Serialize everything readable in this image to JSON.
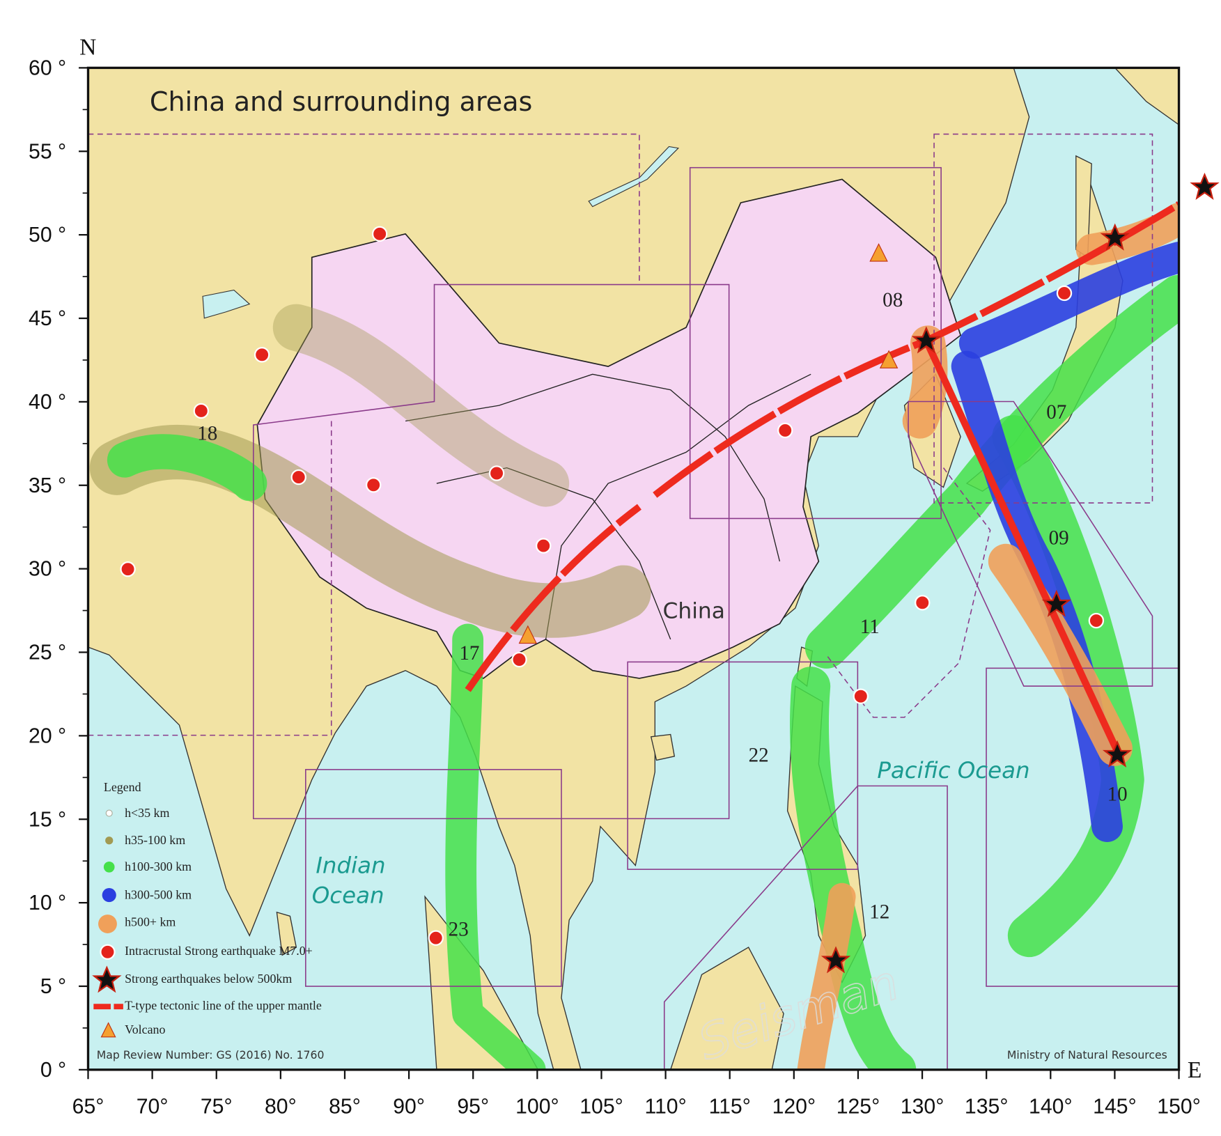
{
  "map": {
    "title": "China and surrounding areas",
    "north": "N",
    "east": "E",
    "country": "China",
    "pacific": "Pacific Ocean",
    "indian_1": "Indian",
    "indian_2": "Ocean",
    "watermark": "Seisman",
    "review_number": "Map Review Number: GS (2016) No. 1760",
    "source": "Ministry of Natural Resources",
    "regions": [
      "08",
      "07",
      "09",
      "10",
      "11",
      "12",
      "17",
      "18",
      "22",
      "23"
    ],
    "legend": {
      "title": "Legend",
      "items": [
        "h<35 km",
        "h35-100 km",
        "h100-300 km",
        "h300-500 km",
        "h500+ km",
        "Intracrustal Strong earthquake M7.0+",
        "Strong earthquakes below 500km",
        "T-type tectonic line of the upper mantle",
        "Volcano"
      ]
    },
    "lat_range": [
      0,
      60
    ],
    "lon_range": [
      65,
      150
    ],
    "lat_ticks": [
      {
        "value": 0,
        "label": "0 °"
      },
      {
        "value": 5,
        "label": "5 °"
      },
      {
        "value": 10,
        "label": "10 °"
      },
      {
        "value": 15,
        "label": "15 °"
      },
      {
        "value": 20,
        "label": "20 °"
      },
      {
        "value": 25,
        "label": "25 °"
      },
      {
        "value": 30,
        "label": "30 °"
      },
      {
        "value": 35,
        "label": "35 °"
      },
      {
        "value": 40,
        "label": "40 °"
      },
      {
        "value": 45,
        "label": "45 °"
      },
      {
        "value": 50,
        "label": "50 °"
      },
      {
        "value": 55,
        "label": "55 °"
      },
      {
        "value": 60,
        "label": "60 °"
      }
    ],
    "lon_ticks": [
      {
        "value": 65,
        "label": "65°"
      },
      {
        "value": 70,
        "label": "70°"
      },
      {
        "value": 75,
        "label": "75°"
      },
      {
        "value": 80,
        "label": "80°"
      },
      {
        "value": 85,
        "label": "85°"
      },
      {
        "value": 90,
        "label": "90°"
      },
      {
        "value": 95,
        "label": "95°"
      },
      {
        "value": 100,
        "label": "100°"
      },
      {
        "value": 105,
        "label": "105°"
      },
      {
        "value": 110,
        "label": "110°"
      },
      {
        "value": 115,
        "label": "115°"
      },
      {
        "value": 120,
        "label": "120°"
      },
      {
        "value": 125,
        "label": "125°"
      },
      {
        "value": 130,
        "label": "130°"
      },
      {
        "value": 135,
        "label": "135°"
      },
      {
        "value": 140,
        "label": "140°"
      },
      {
        "value": 145,
        "label": "145°"
      },
      {
        "value": 150,
        "label": "150°"
      }
    ]
  }
}
